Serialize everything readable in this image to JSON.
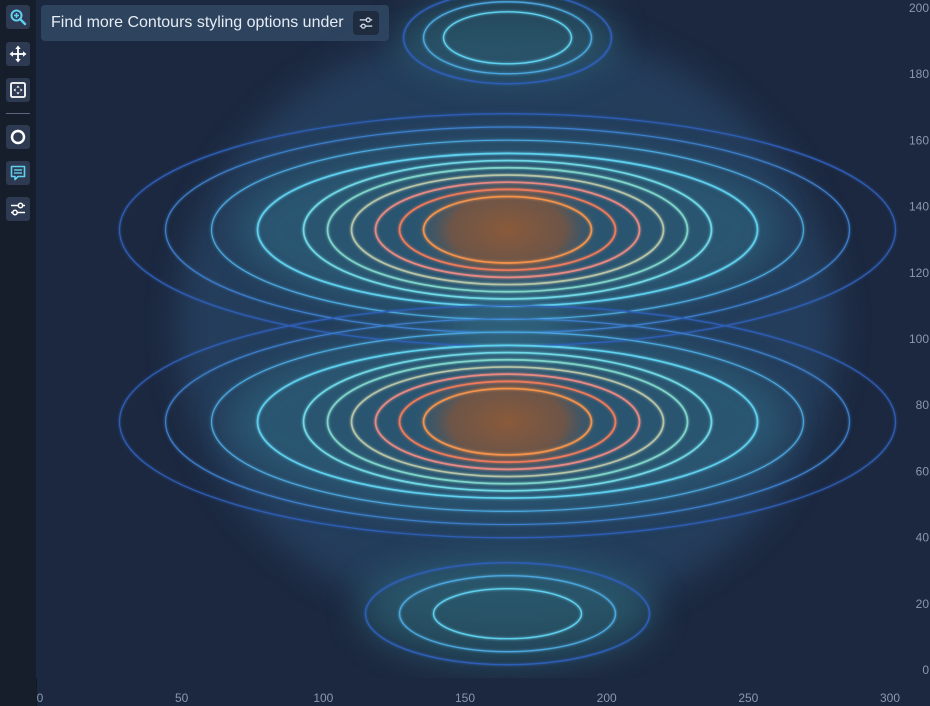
{
  "toolbar": {
    "items": [
      {
        "name": "zoom-in-icon",
        "label": "Zoom"
      },
      {
        "name": "pan-icon",
        "label": "Pan"
      },
      {
        "name": "zoom-extents-icon",
        "label": "Zoom extents"
      },
      {
        "name": "cursor-modifier-icon",
        "label": "Cursor"
      },
      {
        "name": "legend-icon",
        "label": "Legend"
      },
      {
        "name": "settings-sliders-icon",
        "label": "Settings"
      }
    ]
  },
  "hint": {
    "text": "Find more Contours styling options under",
    "icon": "settings-sliders-icon"
  },
  "colors": {
    "background": "#1c2840",
    "toolbar": "#161d2b",
    "accent": "#5fd0ee",
    "contour_low": "#2f5fb8",
    "contour_mid": "#7fd4c8",
    "contour_high": "#f08a4b"
  },
  "chart_data": {
    "type": "heatmap",
    "subtype": "contours",
    "title": "",
    "xlabel": "",
    "ylabel": "",
    "xlim": [
      0,
      300
    ],
    "ylim": [
      0,
      200
    ],
    "x_ticks": [
      "0",
      "50",
      "100",
      "150",
      "200",
      "250",
      "300"
    ],
    "y_ticks": [
      "0",
      "20",
      "40",
      "60",
      "80",
      "100",
      "120",
      "140",
      "160",
      "180",
      "200"
    ],
    "y_axis_side": "right",
    "grid": false,
    "peaks": [
      {
        "x": 165,
        "y": 133,
        "level": "high"
      },
      {
        "x": 165,
        "y": 75,
        "level": "high"
      },
      {
        "x": 165,
        "y": 17,
        "level": "low"
      },
      {
        "x": 165,
        "y": 191,
        "level": "low"
      }
    ]
  }
}
